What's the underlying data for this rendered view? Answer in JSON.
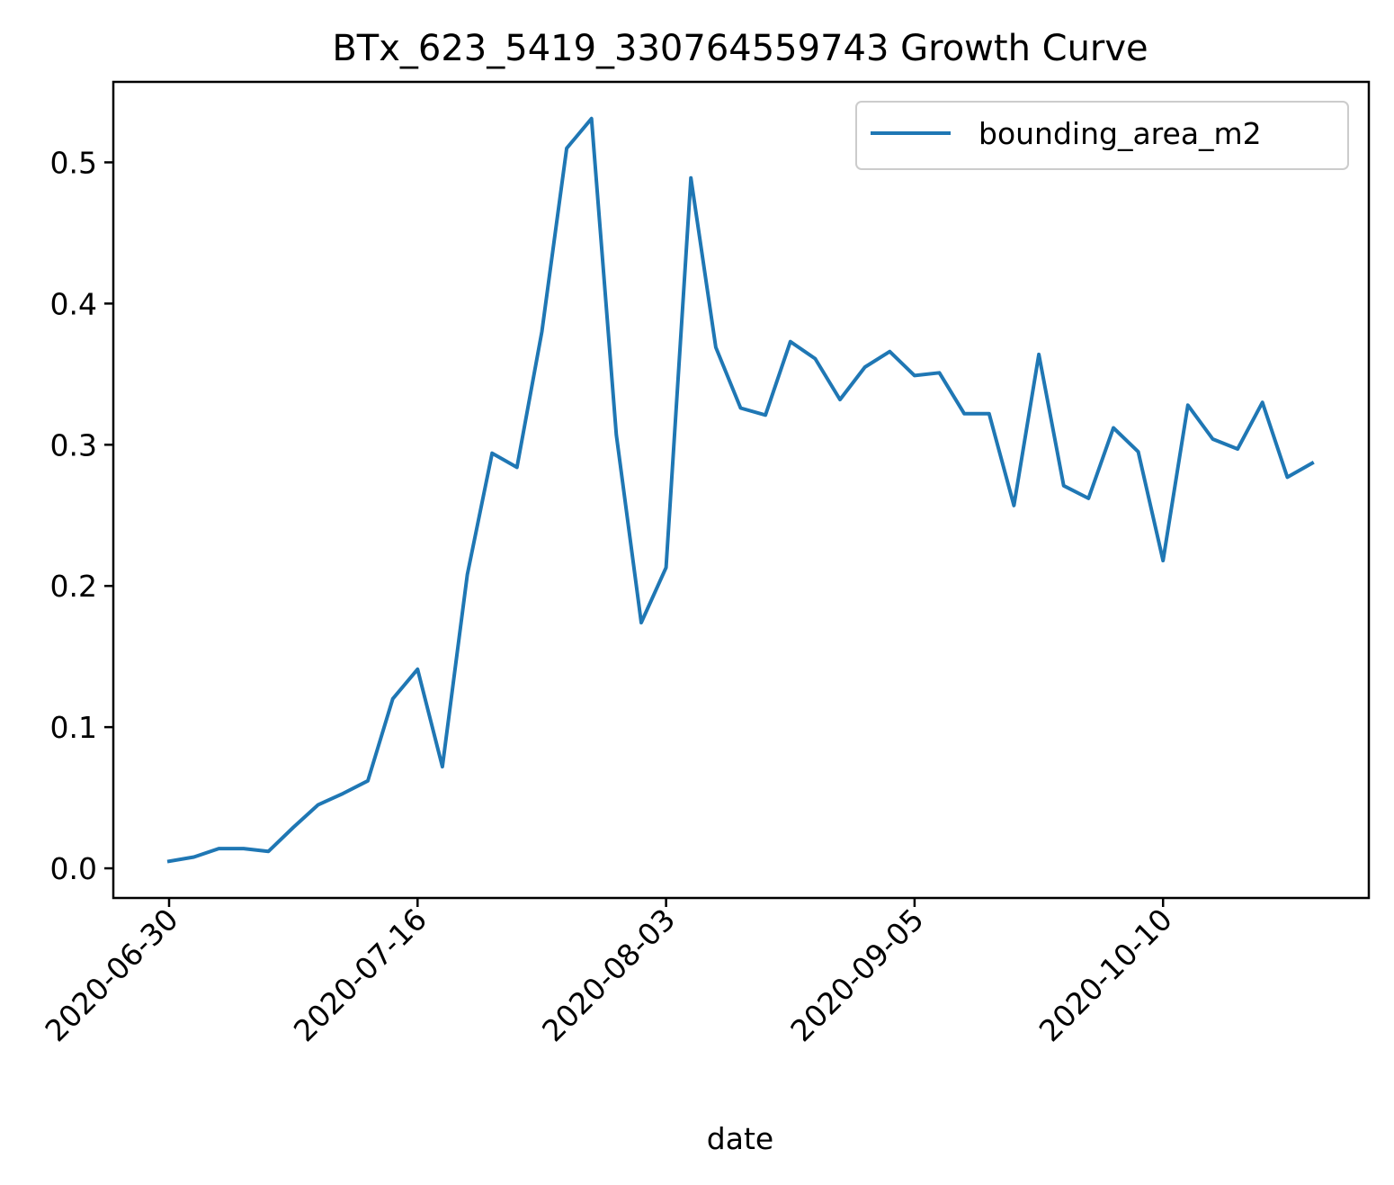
{
  "chart_data": {
    "type": "line",
    "title": "BTx_623_5419_330764559743 Growth Curve",
    "xlabel": "date",
    "ylabel": "",
    "x_tick_labels": [
      "2020-06-30",
      "2020-07-16",
      "2020-08-03",
      "2020-09-05",
      "2020-10-10"
    ],
    "y_tick_labels": [
      "0.0",
      "0.1",
      "0.2",
      "0.3",
      "0.4",
      "0.5"
    ],
    "y_ticks": [
      0.0,
      0.1,
      0.2,
      0.3,
      0.4,
      0.5
    ],
    "ylim": [
      -0.021,
      0.557
    ],
    "legend_position": "upper right",
    "grid": false,
    "series": [
      {
        "name": "bounding_area_m2",
        "color": "#1f77b4",
        "values": [
          0.005,
          0.008,
          0.014,
          0.014,
          0.012,
          0.029,
          0.045,
          0.053,
          0.062,
          0.12,
          0.141,
          0.072,
          0.208,
          0.294,
          0.284,
          0.38,
          0.51,
          0.531,
          0.307,
          0.174,
          0.213,
          0.489,
          0.369,
          0.326,
          0.321,
          0.373,
          0.361,
          0.332,
          0.355,
          0.366,
          0.349,
          0.351,
          0.322,
          0.322,
          0.257,
          0.364,
          0.271,
          0.262,
          0.312,
          0.295,
          0.218,
          0.328,
          0.304,
          0.297,
          0.33,
          0.277,
          0.287
        ]
      }
    ]
  }
}
